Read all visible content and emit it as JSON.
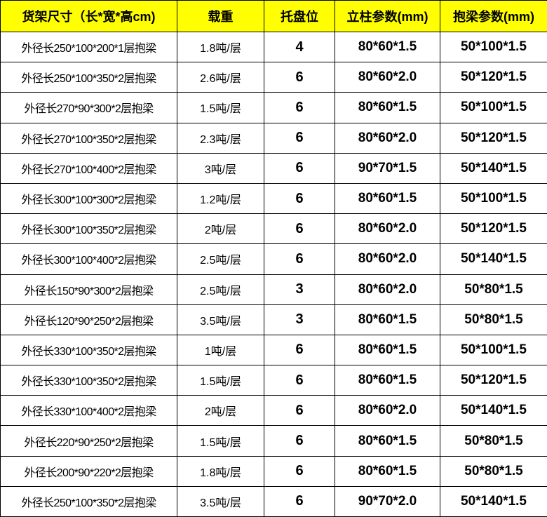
{
  "table": {
    "header": [
      "货架尺寸（长*宽*高cm)",
      "载重",
      "托盘位",
      "立柱参数(mm)",
      "抱梁参数(mm)"
    ],
    "rows": [
      [
        "外径长250*100*200*1层抱梁",
        "1.8吨/层",
        "4",
        "80*60*1.5",
        "50*100*1.5"
      ],
      [
        "外径长250*100*350*2层抱梁",
        "2.6吨/层",
        "6",
        "80*60*2.0",
        "50*120*1.5"
      ],
      [
        "外径长270*90*300*2层抱梁",
        "1.5吨/层",
        "6",
        "80*60*1.5",
        "50*100*1.5"
      ],
      [
        "外径长270*100*350*2层抱梁",
        "2.3吨/层",
        "6",
        "80*60*2.0",
        "50*120*1.5"
      ],
      [
        "外径长270*100*400*2层抱梁",
        "3吨/层",
        "6",
        "90*70*1.5",
        "50*140*1.5"
      ],
      [
        "外径长300*100*300*2层抱梁",
        "1.2吨/层",
        "6",
        "80*60*1.5",
        "50*100*1.5"
      ],
      [
        "外径长300*100*350*2层抱梁",
        "2吨/层",
        "6",
        "80*60*2.0",
        "50*120*1.5"
      ],
      [
        "外径长300*100*400*2层抱梁",
        "2.5吨/层",
        "6",
        "80*60*2.0",
        "50*140*1.5"
      ],
      [
        "外径长150*90*300*2层抱梁",
        "2.5吨/层",
        "3",
        "80*60*2.0",
        "50*80*1.5"
      ],
      [
        "外径长120*90*250*2层抱梁",
        "3.5吨/层",
        "3",
        "80*60*1.5",
        "50*80*1.5"
      ],
      [
        "外径长330*100*350*2层抱梁",
        "1吨/层",
        "6",
        "80*60*1.5",
        "50*100*1.5"
      ],
      [
        "外径长330*100*350*2层抱梁",
        "1.5吨/层",
        "6",
        "80*60*1.5",
        "50*120*1.5"
      ],
      [
        "外径长330*100*400*2层抱梁",
        "2吨/层",
        "6",
        "80*60*2.0",
        "50*140*1.5"
      ],
      [
        "外径长220*90*250*2层抱梁",
        "1.5吨/层",
        "6",
        "80*60*1.5",
        "50*80*1.5"
      ],
      [
        "外径长200*90*220*2层抱梁",
        "1.8吨/层",
        "6",
        "80*60*1.5",
        "50*80*1.5"
      ],
      [
        "外径长250*100*350*2层抱梁",
        "3.5吨/层",
        "6",
        "90*70*2.0",
        "50*140*1.5"
      ]
    ]
  }
}
